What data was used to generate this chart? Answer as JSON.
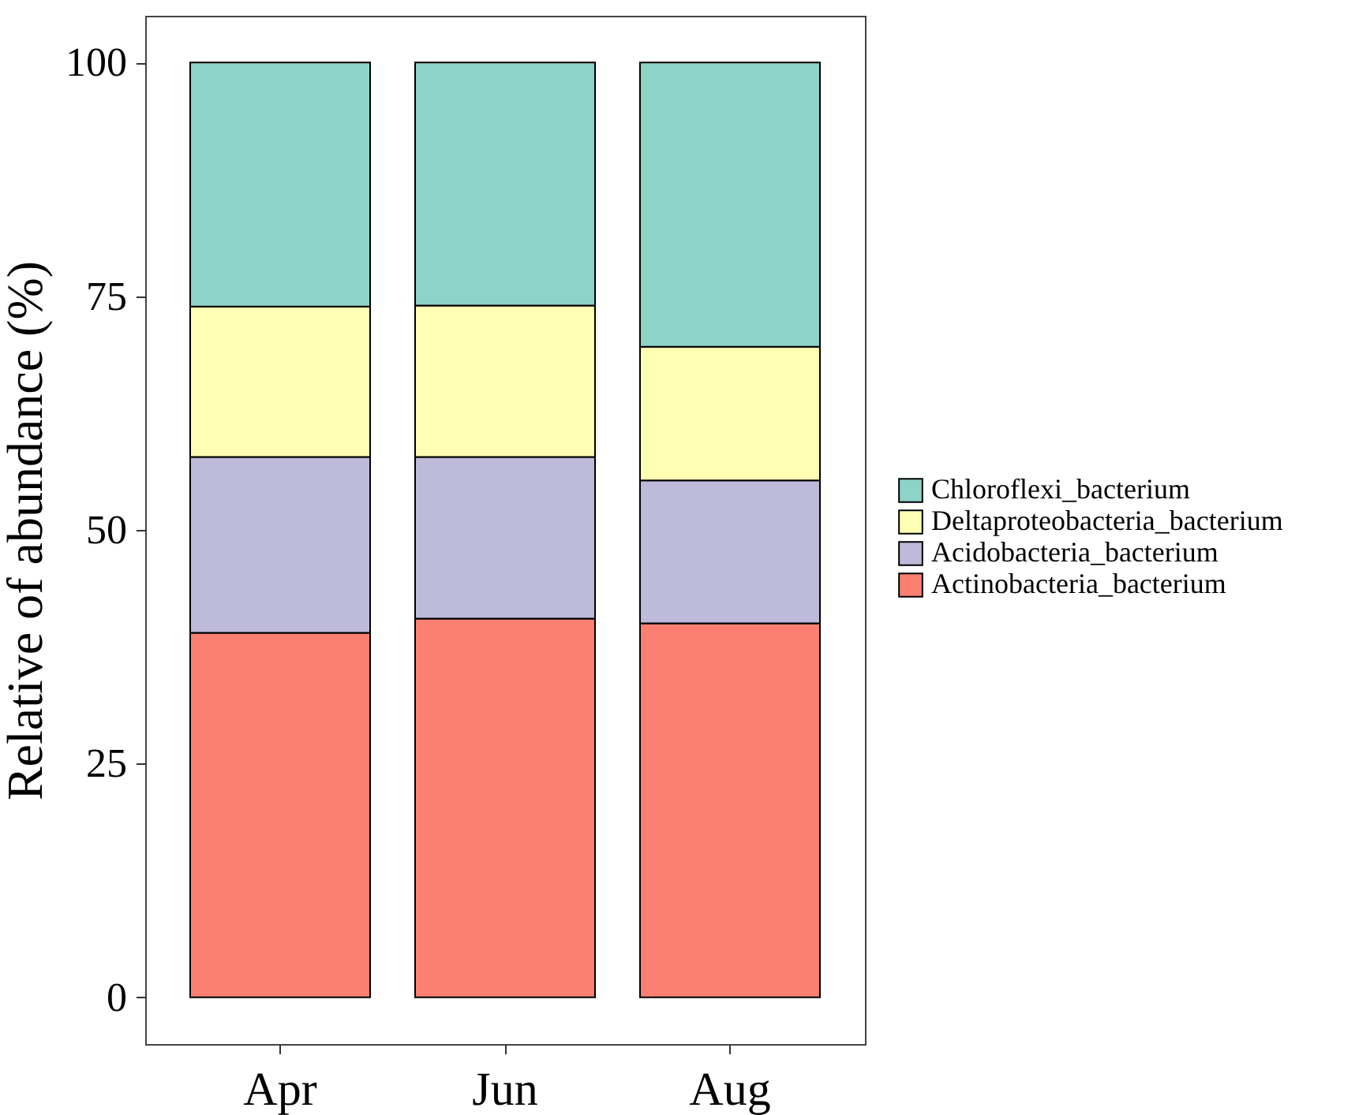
{
  "chart_data": {
    "type": "bar",
    "stacked": true,
    "ylabel": "Relative of abundance (%)",
    "categories": [
      "Apr",
      "Jun",
      "Aug"
    ],
    "series": [
      {
        "name": "Actinobacteria_bacterium",
        "color": "#fb8072",
        "values": [
          39.0,
          40.5,
          40.0
        ]
      },
      {
        "name": "Acidobacteria_bacterium",
        "color": "#bebada",
        "values": [
          18.8,
          17.3,
          15.3
        ]
      },
      {
        "name": "Deltaproteobacteria_bacterium",
        "color": "#ffffb3",
        "values": [
          16.1,
          16.2,
          14.3
        ]
      },
      {
        "name": "Chloroflexi_bacterium",
        "color": "#8dd3c7",
        "values": [
          26.1,
          26.0,
          30.4
        ]
      }
    ],
    "ylim": [
      -5,
      105
    ],
    "yticks": [
      0,
      25,
      50,
      75,
      100
    ],
    "grid": false,
    "legend": "right"
  }
}
